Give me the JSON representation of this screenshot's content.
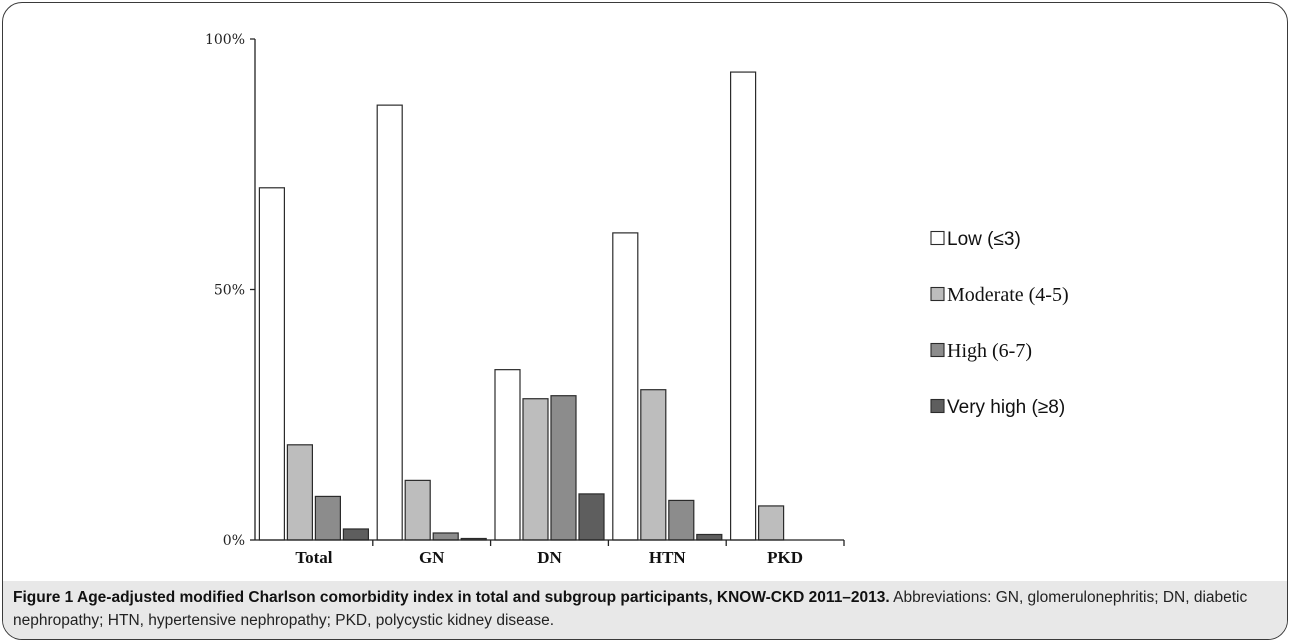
{
  "chart_data": {
    "type": "bar",
    "categories": [
      "Total",
      "GN",
      "DN",
      "HTN",
      "PKD"
    ],
    "yticks": [
      "0%",
      "50%",
      "100%"
    ],
    "ylim": [
      0,
      100
    ],
    "legend_position": "right",
    "grid": false,
    "series": [
      {
        "name": "Low (≤3)",
        "color": "#ffffff",
        "values": [
          70.3,
          86.8,
          34.0,
          61.3,
          93.4
        ]
      },
      {
        "name": "Moderate (4-5)",
        "color": "#bdbdbd",
        "values": [
          19.0,
          11.9,
          28.2,
          30.0,
          6.8
        ]
      },
      {
        "name": "High (6-7)",
        "color": "#8c8c8c",
        "values": [
          8.7,
          1.4,
          28.8,
          7.9,
          0.0
        ]
      },
      {
        "name": "Very high (≥8)",
        "color": "#5e5e5e",
        "values": [
          2.2,
          0.3,
          9.2,
          1.1,
          0.0
        ]
      }
    ]
  },
  "caption": {
    "label": "Figure 1 Age-adjusted modified Charlson comorbidity index in total and subgroup participants, KNOW-CKD 2011–2013.",
    "text": " Abbreviations: GN, glomerulonephritis; DN, diabetic nephropathy; HTN, hypertensive nephropathy; PKD, polycystic kidney disease."
  }
}
